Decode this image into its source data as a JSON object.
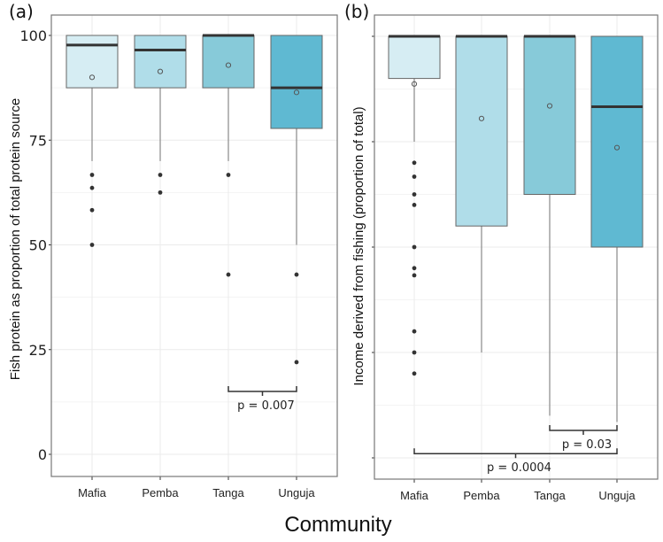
{
  "chart_data": [
    {
      "type": "box",
      "panel_label": "(a)",
      "ylabel": "Fish protein as proportion of total protein source",
      "xlabel": "Community",
      "categories": [
        "Mafia",
        "Pemba",
        "Tanga",
        "Unguja"
      ],
      "ylim": [
        -5,
        105
      ],
      "yticks": [
        "0",
        "25",
        "50",
        "75",
        "100"
      ],
      "ytick_values": [
        0,
        25,
        50,
        75,
        100
      ],
      "show_tick_labels": true,
      "boxes": [
        {
          "name": "Mafia",
          "low": 70,
          "q1": 87.5,
          "median": 97.7,
          "q3": 100,
          "high": 100,
          "mean": 90,
          "outliers": [
            66.7,
            63.6,
            58.3,
            50
          ],
          "color": "#d6edf3"
        },
        {
          "name": "Pemba",
          "low": 70,
          "q1": 87.5,
          "median": 96.5,
          "q3": 100,
          "high": 100,
          "mean": 91.4,
          "outliers": [
            66.7,
            62.5
          ],
          "color": "#b0dde9"
        },
        {
          "name": "Tanga",
          "low": 70,
          "q1": 87.5,
          "median": 100,
          "q3": 100,
          "high": 100,
          "mean": 92.9,
          "outliers": [
            66.7,
            42.9
          ],
          "color": "#87cad9"
        },
        {
          "name": "Unguja",
          "low": 50,
          "q1": 77.8,
          "median": 87.5,
          "q3": 100,
          "high": 100,
          "mean": 86.4,
          "outliers": [
            42.9,
            22
          ],
          "color": "#5fb9d2"
        }
      ],
      "comparisons": [
        {
          "from": "Tanga",
          "to": "Unguja",
          "label": "p = 0.007",
          "at": 15
        }
      ]
    },
    {
      "type": "box",
      "panel_label": "(b)",
      "ylabel": "Income derived from fishing (proportion of total)",
      "xlabel": "Community",
      "categories": [
        "Mafia",
        "Pemba",
        "Tanga",
        "Unguja"
      ],
      "ylim": [
        -5,
        105
      ],
      "ytick_values": [
        0,
        25,
        50,
        75,
        100
      ],
      "show_tick_labels": false,
      "boxes": [
        {
          "name": "Mafia",
          "low": 75,
          "q1": 90,
          "median": 100,
          "q3": 100,
          "high": 100,
          "mean": 88.7,
          "outliers": [
            70,
            66.7,
            62.5,
            60,
            50,
            45,
            43.3,
            30,
            25,
            20
          ],
          "color": "#d6edf3"
        },
        {
          "name": "Pemba",
          "low": 25,
          "q1": 55,
          "median": 100,
          "q3": 100,
          "high": 100,
          "mean": 80.5,
          "outliers": [],
          "color": "#b0dde9"
        },
        {
          "name": "Tanga",
          "low": 10,
          "q1": 62.5,
          "median": 100,
          "q3": 100,
          "high": 100,
          "mean": 83.5,
          "outliers": [],
          "color": "#87cad9"
        },
        {
          "name": "Unguja",
          "low": 8.5,
          "q1": 50,
          "median": 83.3,
          "q3": 100,
          "high": 100,
          "mean": 73.6,
          "outliers": [],
          "color": "#5fb9d2"
        }
      ],
      "comparisons": [
        {
          "from": "Tanga",
          "to": "Unguja",
          "label": "p = 0.03",
          "at": 6.5
        },
        {
          "from": "Mafia",
          "to": "Unguja",
          "label": "p = 0.0004",
          "at": 1
        }
      ]
    }
  ],
  "xlabel": "Community"
}
